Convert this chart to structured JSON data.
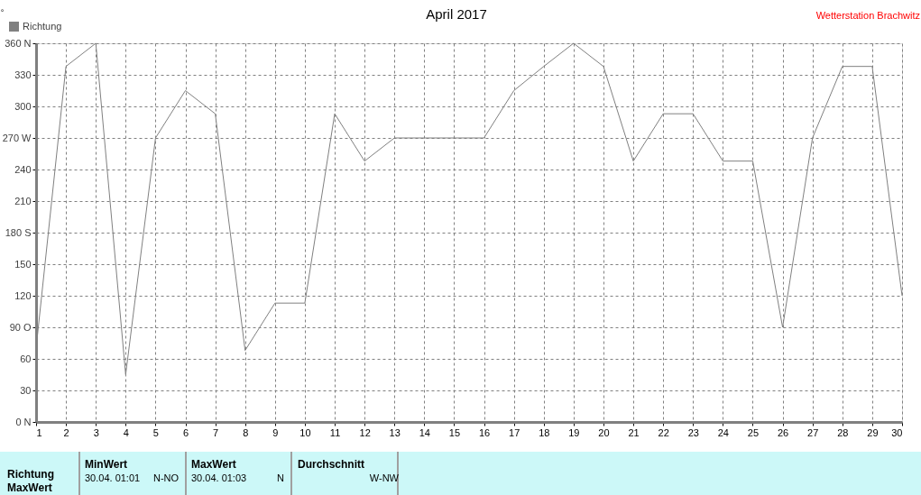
{
  "chart_data": {
    "type": "line",
    "title": "April 2017",
    "ylabel": "°",
    "x": [
      1,
      2,
      3,
      4,
      5,
      6,
      7,
      8,
      9,
      10,
      11,
      12,
      13,
      14,
      15,
      16,
      17,
      18,
      19,
      20,
      21,
      22,
      23,
      24,
      25,
      26,
      27,
      28,
      29,
      30
    ],
    "series": [
      {
        "name": "Richtung",
        "color": "#808080",
        "values": [
          70,
          338,
          360,
          45,
          270,
          315,
          293,
          68,
          113,
          113,
          293,
          248,
          270,
          270,
          270,
          270,
          315,
          338,
          360,
          338,
          248,
          293,
          293,
          248,
          248,
          90,
          270,
          338,
          338,
          120
        ]
      }
    ],
    "xlim": [
      1,
      30
    ],
    "xticks": [
      1,
      2,
      3,
      4,
      5,
      6,
      7,
      8,
      9,
      10,
      11,
      12,
      13,
      14,
      15,
      16,
      17,
      18,
      19,
      20,
      21,
      22,
      23,
      24,
      25,
      26,
      27,
      28,
      29,
      30
    ],
    "ylim": [
      0,
      360
    ],
    "yticks": [
      {
        "value": 0,
        "label": "0 N"
      },
      30,
      60,
      {
        "value": 90,
        "label": "90 O"
      },
      120,
      150,
      {
        "value": 180,
        "label": "180 S"
      },
      210,
      240,
      {
        "value": 270,
        "label": "270 W"
      },
      300,
      330,
      {
        "value": 360,
        "label": "360 N"
      }
    ],
    "grid": true,
    "legend": "top left",
    "marker": "none",
    "line_style": "solid",
    "annotations": [
      "Wetterstation Brachwitz",
      "Richtung",
      "MaxWert",
      "MinWert",
      "30.04.  01:01",
      "N-NO",
      "MaxWert",
      "30.04.  01:03",
      "N",
      "Durchschnitt",
      "W-NW"
    ]
  }
}
